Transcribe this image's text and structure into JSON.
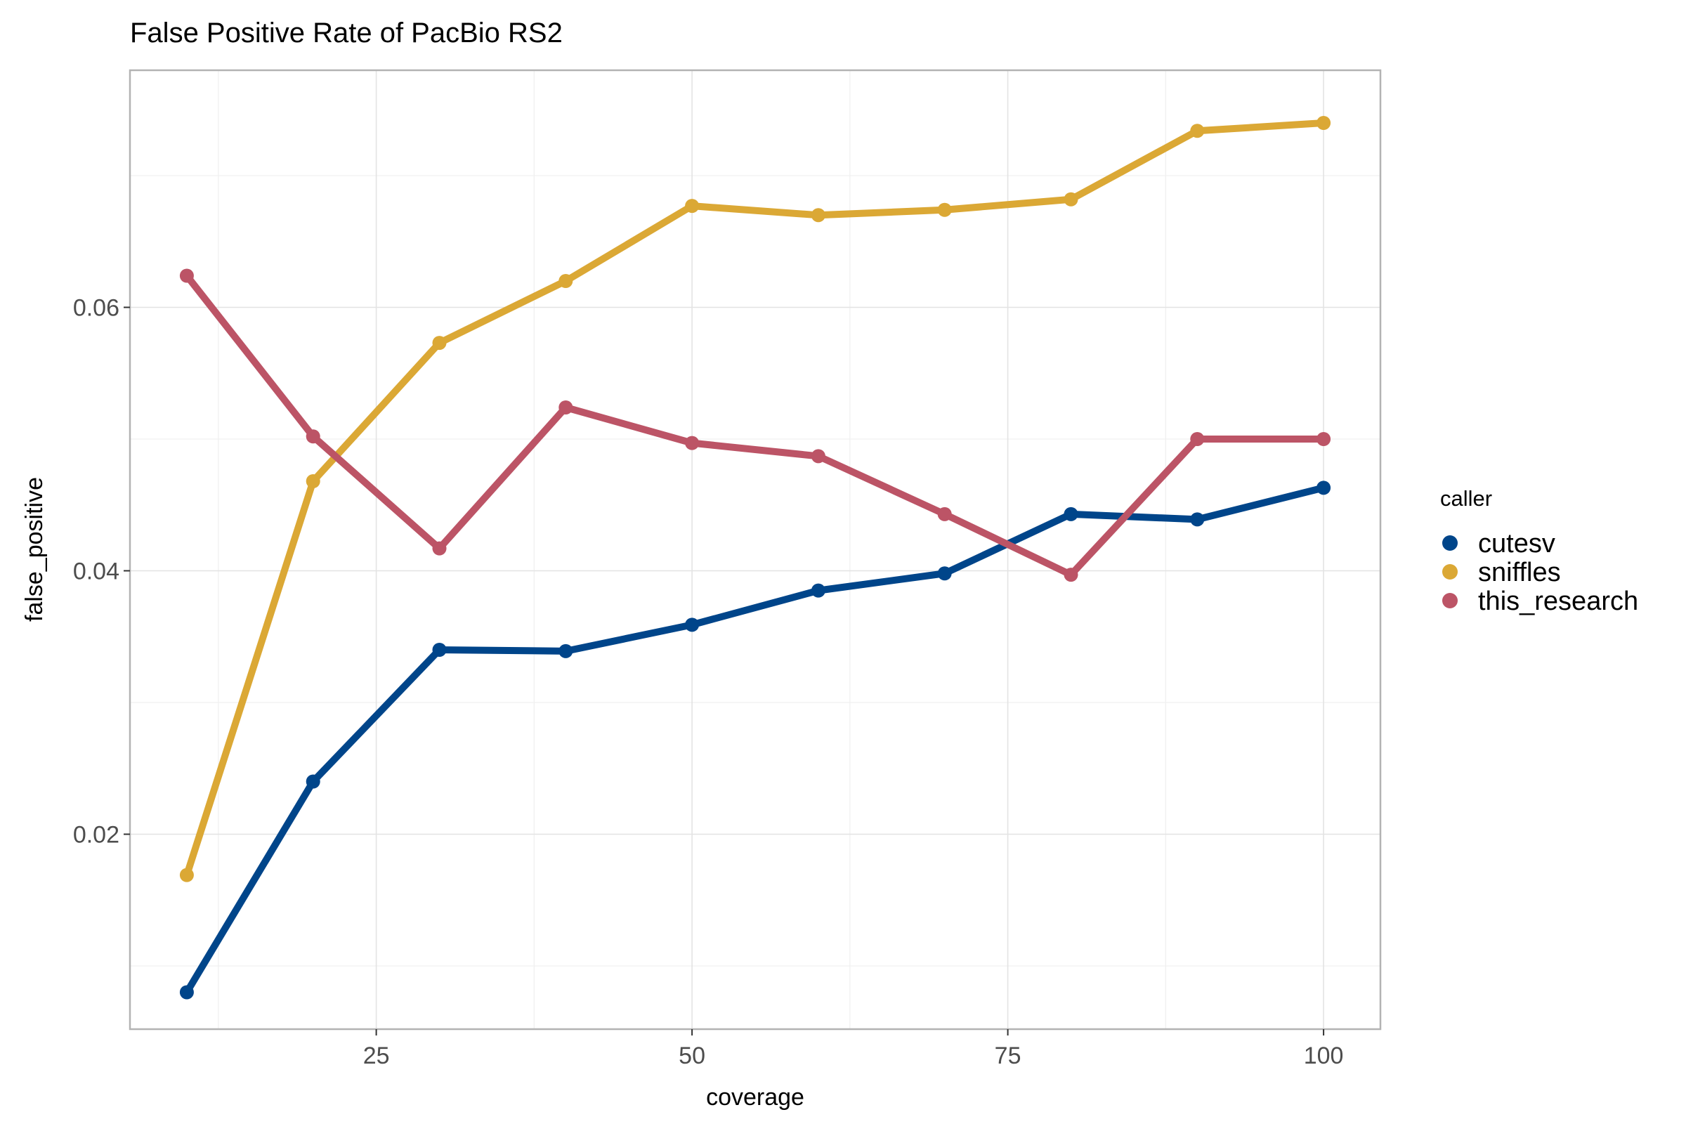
{
  "chart_data": {
    "type": "line",
    "title": "False Positive Rate of PacBio RS2",
    "xlabel": "coverage",
    "ylabel": "false_positive",
    "xlim": [
      5.5,
      104.5
    ],
    "ylim": [
      0.0052,
      0.078
    ],
    "x_ticks": [
      25,
      50,
      75,
      100
    ],
    "x_tick_labels": [
      "25",
      "50",
      "75",
      "100"
    ],
    "y_ticks": [
      0.02,
      0.04,
      0.06
    ],
    "y_tick_labels": [
      "0.02",
      "0.04",
      "0.06"
    ],
    "x_minor": [
      12.5,
      37.5,
      62.5,
      87.5
    ],
    "y_minor": [
      0.01,
      0.03,
      0.05,
      0.07
    ],
    "grid": true,
    "legend": {
      "title": "caller",
      "position": "right"
    },
    "x": [
      10,
      20,
      30,
      40,
      50,
      60,
      70,
      80,
      90,
      100
    ],
    "series": [
      {
        "name": "cutesv",
        "color": "#00458a",
        "values": [
          0.008,
          0.024,
          0.034,
          0.0339,
          0.0359,
          0.0385,
          0.0398,
          0.0443,
          0.0439,
          0.0463
        ]
      },
      {
        "name": "sniffles",
        "color": "#dba835",
        "values": [
          0.0169,
          0.0468,
          0.0573,
          0.062,
          0.0677,
          0.067,
          0.0674,
          0.0682,
          0.0734,
          0.074
        ]
      },
      {
        "name": "this_research",
        "color": "#bc5466",
        "values": [
          0.0624,
          0.0502,
          0.0417,
          0.0524,
          0.0497,
          0.0487,
          0.0443,
          0.0397,
          0.05,
          0.05
        ]
      }
    ]
  }
}
